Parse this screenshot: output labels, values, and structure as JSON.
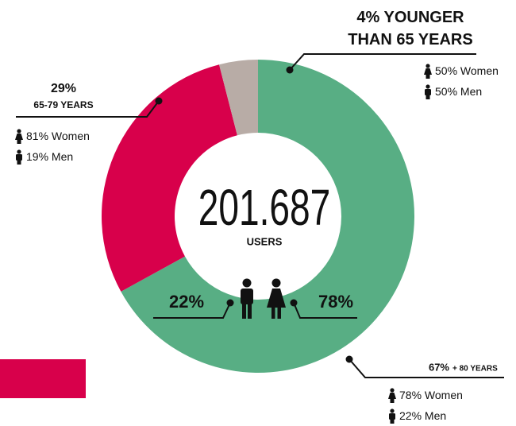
{
  "chart_data": {
    "type": "donut",
    "categories": [
      "+ 80 YEARS",
      "65-79 YEARS",
      "YOUNGER THAN 65 YEARS"
    ],
    "values": [
      67,
      29,
      4
    ],
    "value_labels": [
      "67%",
      "29%",
      "4%"
    ],
    "colors": [
      "#58ae84",
      "#d8004b",
      "#b8aca6"
    ],
    "breakdown": [
      [
        {
          "label": "Women",
          "value": 78,
          "value_label": "78%"
        },
        {
          "label": "Men",
          "value": 22,
          "value_label": "22%"
        }
      ],
      [
        {
          "label": "Women",
          "value": 81,
          "value_label": "81%"
        },
        {
          "label": "Men",
          "value": 19,
          "value_label": "19%"
        }
      ],
      [
        {
          "label": "Women",
          "value": 50,
          "value_label": "50%"
        },
        {
          "label": "Men",
          "value": 50,
          "value_label": "50%"
        }
      ]
    ],
    "total": {
      "value": 201687,
      "label": "201.687"
    },
    "total_label": "USERS",
    "gender": {
      "men": {
        "value": 22,
        "label": "22%"
      },
      "women": {
        "value": 78,
        "label": "78%"
      }
    }
  }
}
